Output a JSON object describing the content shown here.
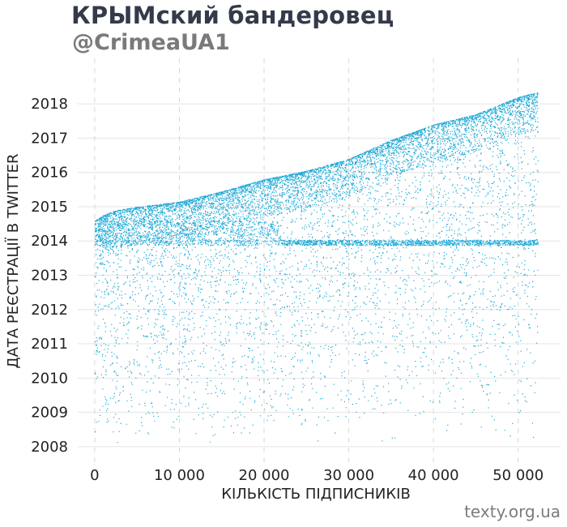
{
  "header": {
    "title": "КРЫМский бандеровец",
    "subtitle": "@CrimeaUA1"
  },
  "footer": {
    "credit": "texty.org.ua"
  },
  "chart_data": {
    "type": "scatter",
    "title": "КРЫМский бандеровец",
    "subtitle": "@CrimeaUA1",
    "xlabel": "КІЛЬКІСТЬ ПІДПИСНИКІВ",
    "ylabel": "ДАТА РЕЄСТРАЦІЇ В TWITTER",
    "xlim": [
      -2000,
      55000
    ],
    "ylim": [
      2007.5,
      2018.95
    ],
    "x_ticks": [
      0,
      10000,
      20000,
      30000,
      40000,
      50000
    ],
    "x_tick_labels": [
      "0",
      "10 000",
      "20 000",
      "30 000",
      "40 000",
      "50 000"
    ],
    "y_ticks": [
      2008,
      2009,
      2010,
      2011,
      2012,
      2013,
      2014,
      2015,
      2016,
      2017,
      2018
    ],
    "y_tick_labels": [
      "2008",
      "2009",
      "2010",
      "2011",
      "2012",
      "2013",
      "2014",
      "2015",
      "2016",
      "2017",
      "2018"
    ],
    "grid": true,
    "point_color": "#1ba8d6",
    "envelope": {
      "x": [
        0,
        1000,
        2500,
        5000,
        10000,
        15000,
        20000,
        25000,
        30000,
        35000,
        40000,
        45000,
        50000,
        52300
      ],
      "y": [
        2014.6,
        2014.75,
        2014.9,
        2015.0,
        2015.15,
        2015.45,
        2015.8,
        2016.05,
        2016.4,
        2016.95,
        2017.4,
        2017.7,
        2018.2,
        2018.35
      ]
    },
    "dense_bands": [
      {
        "y": [
          2014.0,
          2014.6
        ],
        "x_range": [
          0,
          22000
        ]
      },
      {
        "y": [
          2013.9,
          2014.0
        ],
        "x_range": [
          0,
          52000
        ]
      }
    ],
    "point_count_approx": 52000
  }
}
